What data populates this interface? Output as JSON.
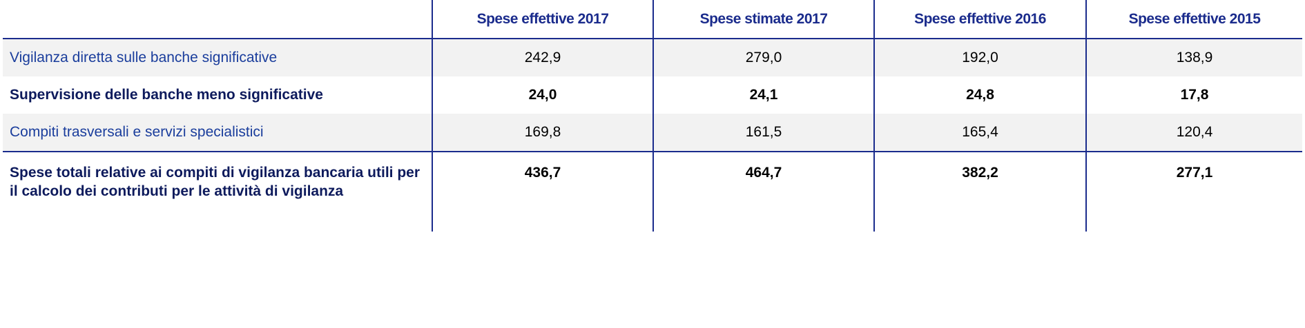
{
  "table": {
    "header": [
      "",
      "Spese effettive 2017",
      "Spese stimate 2017",
      "Spese effettive 2016",
      "Spese effettive 2015"
    ],
    "rows": [
      [
        "Vigilanza diretta sulle banche significative",
        "242,9",
        "279,0",
        "192,0",
        "138,9"
      ],
      [
        "Supervisione delle banche meno significative",
        "24,0",
        "24,1",
        "24,8",
        "17,8"
      ],
      [
        "Compiti trasversali e servizi specialistici",
        "169,8",
        "161,5",
        "165,4",
        "120,4"
      ],
      [
        "Spese totali relative ai compiti di vigilanza bancaria utili per il calcolo dei contributi per le attività di vigilanza",
        "436,7",
        "464,7",
        "382,2",
        "277,1"
      ]
    ]
  }
}
